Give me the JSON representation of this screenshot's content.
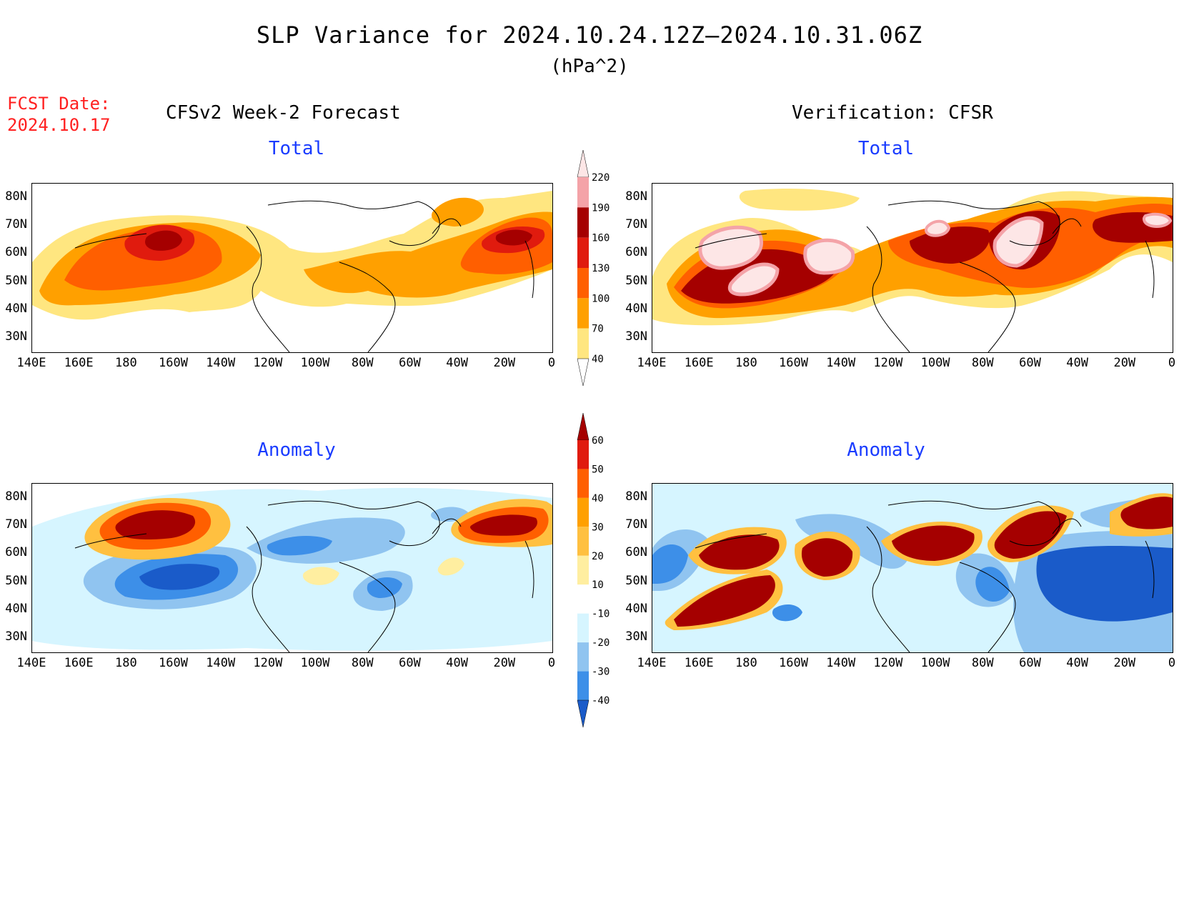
{
  "title": "SLP Variance for 2024.10.24.12Z–2024.10.31.06Z",
  "units": "(hPa^2)",
  "fcst_date_label": "FCST Date:",
  "fcst_date": "2024.10.17",
  "left_header": "CFSv2 Week-2 Forecast",
  "right_header": "Verification: CFSR",
  "panels": {
    "forecast_total": {
      "title": "Total"
    },
    "verif_total": {
      "title": "Total"
    },
    "forecast_anom": {
      "title": "Anomaly"
    },
    "verif_anom": {
      "title": "Anomaly"
    }
  },
  "axes": {
    "lat_labels": [
      "80N",
      "70N",
      "60N",
      "50N",
      "40N",
      "30N"
    ],
    "lon_labels": [
      "140E",
      "160E",
      "180",
      "160W",
      "140W",
      "120W",
      "100W",
      "80W",
      "60W",
      "40W",
      "20W",
      "0"
    ],
    "lat_range": [
      25,
      85
    ],
    "lon_range_east_deg": [
      140,
      360
    ]
  },
  "colorbars": {
    "total": {
      "levels": [
        "40",
        "70",
        "100",
        "130",
        "160",
        "190",
        "220"
      ],
      "colors": [
        "#ffe680",
        "#ffa000",
        "#ff5f00",
        "#e01b0e",
        "#a50000",
        "#f4a3a8",
        "#fde6e6"
      ]
    },
    "anomaly": {
      "levels": [
        "60",
        "50",
        "40",
        "30",
        "20",
        "10",
        "-10",
        "-20",
        "-30",
        "-40"
      ],
      "colors": [
        "#a50000",
        "#e01b0e",
        "#ff5f00",
        "#ffa000",
        "#ffc040",
        "#ffeea0",
        "#ffffff",
        "#d6f5ff",
        "#90c4f0",
        "#3d8fe8",
        "#1a5bc9"
      ]
    }
  }
}
